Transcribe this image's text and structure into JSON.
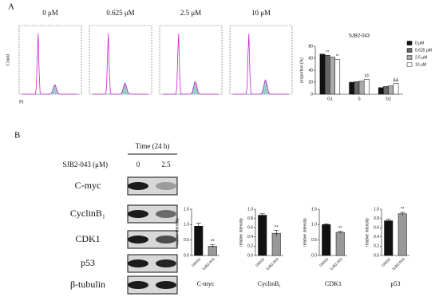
{
  "panel_a": {
    "label": "A",
    "histograms": [
      "0 μM",
      "0.625 μM",
      "2.5 μM",
      "10 μM"
    ],
    "y_label": "Count",
    "x_label": "PI"
  },
  "panel_b": {
    "label": "B",
    "time": "Time (24 h)",
    "dose_label": "SJB2-043 (μM)",
    "doses": [
      "0",
      "2.5"
    ],
    "rows": [
      "C-myc",
      "CyclinB₁",
      "CDK1",
      "p53",
      "β-tubulin"
    ]
  },
  "chart_data": [
    {
      "type": "bar",
      "title": "SJB2-043",
      "y_label": "proportion (%)",
      "categories": [
        "G1",
        "S",
        "G2"
      ],
      "series": [
        {
          "name": "0 μM",
          "color": "#111111",
          "values": [
            67,
            20,
            11
          ]
        },
        {
          "name": "0.625 μM",
          "color": "#666666",
          "values": [
            65,
            21,
            13
          ]
        },
        {
          "name": "2.5 μM",
          "color": "#aaaaaa",
          "values": [
            62,
            22,
            14
          ]
        },
        {
          "name": "10 μM",
          "color": "#ffffff",
          "values": [
            58,
            25,
            18
          ]
        }
      ],
      "ylim": [
        0,
        80
      ],
      "yticks": [
        0,
        20,
        40,
        60,
        80
      ],
      "annotations": [
        "**",
        "**",
        "##",
        "&&"
      ]
    },
    {
      "type": "bar",
      "title": "C-myc",
      "y_label": "relative intensity",
      "categories": [
        "DMSO",
        "SJB2-043"
      ],
      "values": [
        0.95,
        0.3
      ],
      "errors": [
        0.1,
        0.05
      ],
      "colors": [
        "#111111",
        "#999999"
      ],
      "ylim": [
        0,
        1.5
      ],
      "yticks": [
        {
          "value": 0,
          "label": "0.0"
        },
        {
          "value": 0.5,
          "label": "0.5"
        },
        {
          "value": 1,
          "label": "1.0"
        },
        {
          "value": 1.5,
          "label": "1.5"
        }
      ],
      "annotation": "**"
    },
    {
      "type": "bar",
      "title": "CyclinB₁",
      "y_label": "relative intensity",
      "categories": [
        "DMSO",
        "SJB2-043"
      ],
      "values": [
        0.87,
        0.48
      ],
      "errors": [
        0.03,
        0.06
      ],
      "colors": [
        "#111111",
        "#999999"
      ],
      "ylim": [
        0,
        1
      ],
      "yticks": [
        {
          "value": 0,
          "label": "0.0"
        },
        0.2,
        0.4,
        0.6,
        0.8,
        {
          "value": 1,
          "label": "1.0"
        }
      ],
      "annotation": "**"
    },
    {
      "type": "bar",
      "title": "CDK1",
      "y_label": "relative intensity",
      "categories": [
        "DMSO",
        "SJB2-043"
      ],
      "values": [
        1.0,
        0.75
      ],
      "errors": [
        0.02,
        0.03
      ],
      "colors": [
        "#111111",
        "#999999"
      ],
      "ylim": [
        0,
        1.5
      ],
      "yticks": [
        {
          "value": 0,
          "label": "0.0"
        },
        0.5,
        {
          "value": 1,
          "label": "1.0"
        },
        1.5
      ],
      "annotation": "**"
    },
    {
      "type": "bar",
      "title": "p53",
      "y_label": "relative intensity",
      "categories": [
        "DMSO",
        "SJB2-043"
      ],
      "values": [
        0.75,
        0.9
      ],
      "errors": [
        0.03,
        0.03
      ],
      "colors": [
        "#111111",
        "#999999"
      ],
      "ylim": [
        0,
        1
      ],
      "yticks": [
        {
          "value": 0,
          "label": "0.0"
        },
        0.2,
        0.4,
        0.6,
        0.8,
        {
          "value": 1,
          "label": "1.0"
        }
      ],
      "annotation": "**"
    }
  ]
}
